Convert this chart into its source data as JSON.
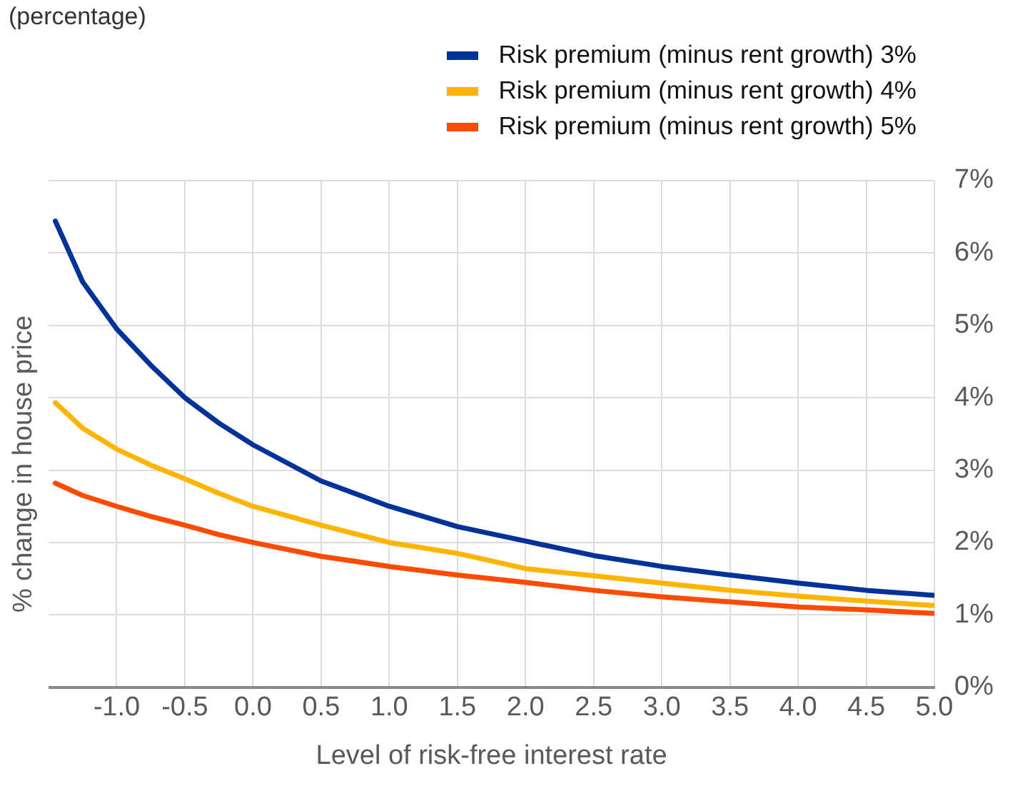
{
  "chart_data": {
    "type": "line",
    "subtitle": "(percentage)",
    "xlabel": "Level of risk-free interest rate",
    "ylabel": "% change in house price",
    "x": [
      -1.45,
      -1.25,
      -1.0,
      -0.75,
      -0.5,
      -0.25,
      0.0,
      0.5,
      1.0,
      1.5,
      2.0,
      2.5,
      3.0,
      3.5,
      4.0,
      4.5,
      5.0
    ],
    "series": [
      {
        "name": "Risk premium (minus rent growth) 3%",
        "color": "#003299",
        "values": [
          6.44,
          5.6,
          4.95,
          4.45,
          4.0,
          3.65,
          3.35,
          2.85,
          2.5,
          2.22,
          2.02,
          1.82,
          1.67,
          1.55,
          1.44,
          1.34,
          1.27
        ]
      },
      {
        "name": "Risk premium (minus rent growth) 4%",
        "color": "#ffb400",
        "values": [
          3.93,
          3.58,
          3.29,
          3.07,
          2.88,
          2.68,
          2.5,
          2.24,
          2.0,
          1.85,
          1.64,
          1.54,
          1.44,
          1.34,
          1.26,
          1.19,
          1.13
        ]
      },
      {
        "name": "Risk premium (minus rent growth) 5%",
        "color": "#ff4b00",
        "values": [
          2.82,
          2.65,
          2.5,
          2.36,
          2.24,
          2.11,
          2.0,
          1.81,
          1.67,
          1.55,
          1.45,
          1.34,
          1.25,
          1.18,
          1.11,
          1.07,
          1.02
        ]
      }
    ],
    "xlim": [
      -1.5,
      5.0
    ],
    "xticks": [
      {
        "value": -1,
        "label": "-1.0"
      },
      {
        "value": -0.5,
        "label": "-0.5"
      },
      {
        "value": 0,
        "label": "0.0"
      },
      {
        "value": 0.5,
        "label": "0.5"
      },
      {
        "value": 1,
        "label": "1.0"
      },
      {
        "value": 1.5,
        "label": "1.5"
      },
      {
        "value": 2,
        "label": "2.0"
      },
      {
        "value": 2.5,
        "label": "2.5"
      },
      {
        "value": 3,
        "label": "3.0"
      },
      {
        "value": 3.5,
        "label": "3.5"
      },
      {
        "value": 4,
        "label": "4.0"
      },
      {
        "value": 4.5,
        "label": "4.5"
      },
      {
        "value": 5,
        "label": "5.0"
      }
    ],
    "ylim": [
      0,
      7
    ],
    "yticks": [
      {
        "value": 0,
        "label": "0%"
      },
      {
        "value": 1,
        "label": "1%"
      },
      {
        "value": 2,
        "label": "2%"
      },
      {
        "value": 3,
        "label": "3%"
      },
      {
        "value": 4,
        "label": "4%"
      },
      {
        "value": 5,
        "label": "5%"
      },
      {
        "value": 6,
        "label": "6%"
      },
      {
        "value": 7,
        "label": "7%"
      }
    ],
    "grid": true,
    "legend": "top right",
    "marker": "none",
    "line_style": "solid"
  }
}
